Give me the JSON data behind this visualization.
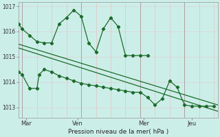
{
  "background_color": "#cceee8",
  "grid_color_v": "#e8b8b8",
  "grid_color_h": "#e0d0d0",
  "line_color": "#1a6b2a",
  "xlabel": "Pression niveau de la mer( hPa )",
  "ylim": [
    1012.6,
    1017.15
  ],
  "yticks": [
    1013,
    1014,
    1015,
    1016,
    1017
  ],
  "xlim": [
    0,
    27
  ],
  "day_labels": [
    "Mar",
    "Ven",
    "Mer",
    "Jeu"
  ],
  "day_positions": [
    1.0,
    8.0,
    17.0,
    23.5
  ],
  "vline_positions": [
    0.5,
    2.5,
    4.5,
    6.5,
    8.5,
    10.5,
    12.5,
    14.5,
    16.5,
    18.5,
    20.5,
    22.5,
    24.5,
    26.5
  ],
  "day_vlines": [
    0.5,
    8.5,
    16.5,
    22.5
  ],
  "series1_x": [
    0,
    0.5,
    1.5,
    2.5,
    3.5,
    4.5,
    5.5,
    6.5,
    7.5,
    8.5,
    9.5,
    10.5,
    11.5,
    12.5,
    13.5,
    14.5,
    15.5,
    16.5,
    17.5
  ],
  "series1_y": [
    1016.3,
    1016.1,
    1015.85,
    1015.6,
    1015.55,
    1015.55,
    1016.3,
    1016.55,
    1016.85,
    1016.6,
    1015.55,
    1015.2,
    1016.1,
    1016.55,
    1016.2,
    1015.05,
    1015.05,
    1015.05,
    1015.05
  ],
  "series2_x": [
    0,
    27
  ],
  "series2_y": [
    1015.5,
    1013.1
  ],
  "series3_x": [
    0,
    27
  ],
  "series3_y": [
    1015.35,
    1012.85
  ],
  "series4_x": [
    0,
    0.5,
    1.5,
    2.5,
    2.8,
    3.5,
    4.5,
    5.5,
    6.5,
    7.5,
    8.5,
    9.5,
    10.5,
    11.5,
    12.5,
    13.5,
    14.5,
    15.5,
    16.5,
    17.5,
    18.5,
    19.5,
    20.5,
    21.5,
    22.5,
    23.5,
    24.5,
    25.5,
    26.5
  ],
  "series4_y": [
    1014.4,
    1014.3,
    1013.75,
    1013.75,
    1014.3,
    1014.5,
    1014.4,
    1014.25,
    1014.15,
    1014.05,
    1013.95,
    1013.9,
    1013.85,
    1013.8,
    1013.75,
    1013.7,
    1013.65,
    1013.6,
    1013.6,
    1013.4,
    1013.1,
    1013.35,
    1014.05,
    1013.8,
    1013.1,
    1013.05,
    1013.05,
    1013.05,
    1013.05
  ]
}
